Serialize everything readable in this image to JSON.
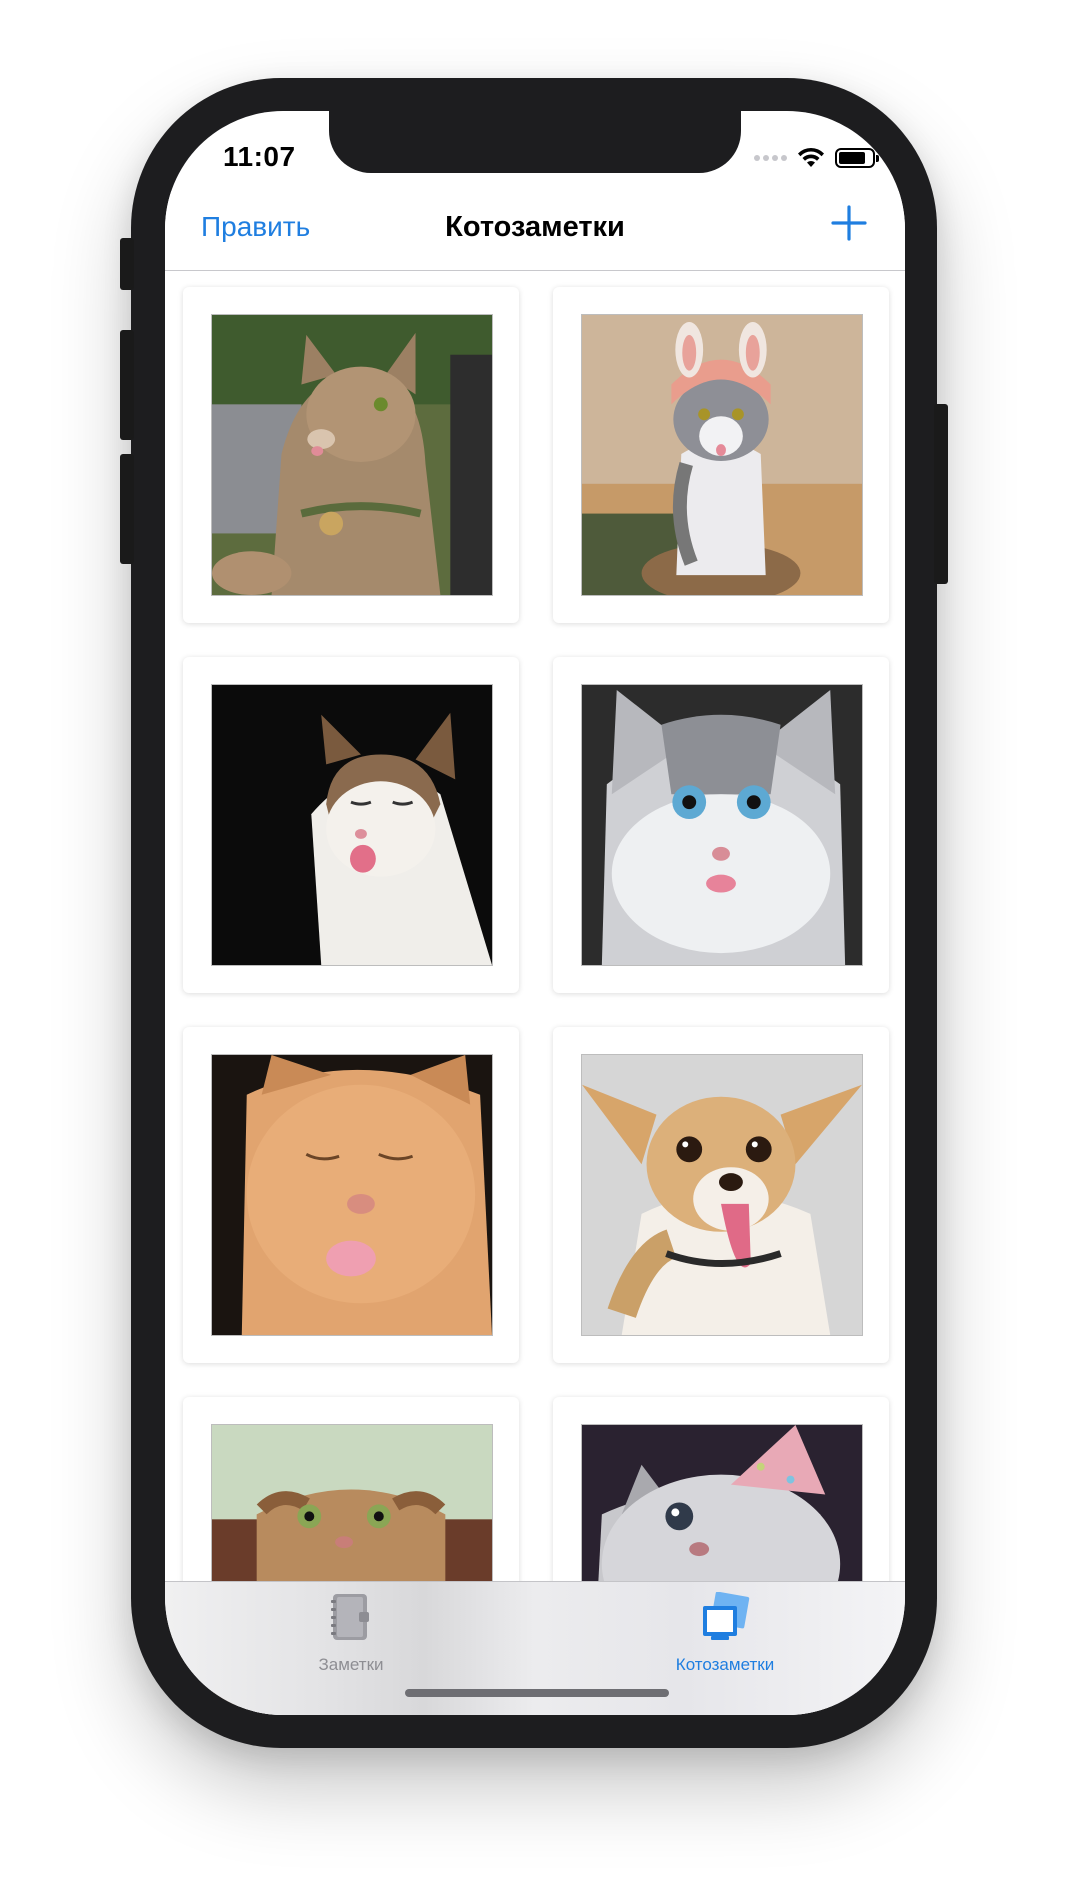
{
  "status_bar": {
    "time": "11:07"
  },
  "nav": {
    "edit_label": "Править",
    "title": "Котозаметки",
    "add_icon": "plus-icon"
  },
  "grid": {
    "photos": [
      {
        "subject": "tabby cat with tongue out"
      },
      {
        "subject": "cat in pink bunny hat on stump"
      },
      {
        "subject": "tabby-white cat squinting with tongue out"
      },
      {
        "subject": "grey blue-eyed cat with tongue out"
      },
      {
        "subject": "orange cat with eyes closed and tongue out"
      },
      {
        "subject": "chihuahua dog with tongue out"
      },
      {
        "subject": "scottish fold cat"
      },
      {
        "subject": "grey cat with party hat"
      }
    ]
  },
  "tabbar": {
    "tabs": [
      {
        "label": "Заметки",
        "icon": "notebook-icon",
        "active": false
      },
      {
        "label": "Котозаметки",
        "icon": "photos-stack-icon",
        "active": true
      }
    ]
  },
  "colors": {
    "accent": "#1f7ee0",
    "inactive": "#8e8e93"
  }
}
